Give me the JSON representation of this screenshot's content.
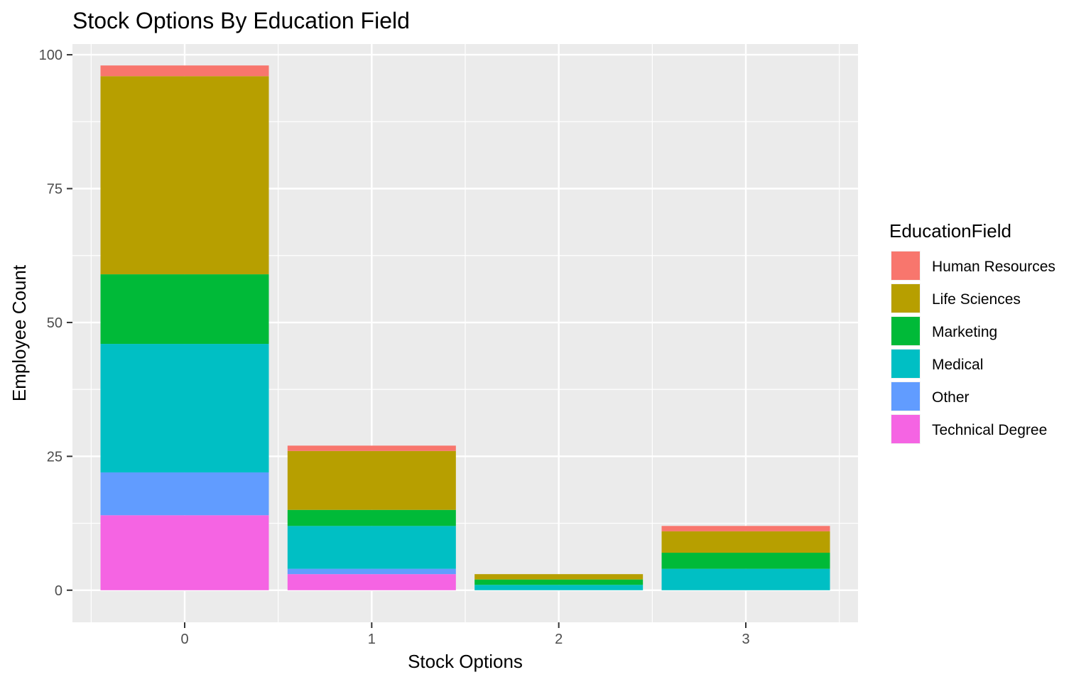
{
  "chart_data": {
    "type": "bar",
    "stacked": true,
    "title": "Stock Options By Education Field",
    "xlabel": "Stock Options",
    "ylabel": "Employee Count",
    "categories": [
      "0",
      "1",
      "2",
      "3"
    ],
    "ylim": [
      -6,
      102
    ],
    "yticks": [
      0,
      25,
      50,
      75,
      100
    ],
    "grid": true,
    "legend_title": "EducationField",
    "legend_position": "right",
    "series": [
      {
        "name": "Human Resources",
        "color": "#F8766D",
        "values": [
          2,
          1,
          0,
          1
        ]
      },
      {
        "name": "Life Sciences",
        "color": "#B79F00",
        "values": [
          37,
          11,
          1,
          4
        ]
      },
      {
        "name": "Marketing",
        "color": "#00BA38",
        "values": [
          13,
          3,
          1,
          3
        ]
      },
      {
        "name": "Medical",
        "color": "#00BFC4",
        "values": [
          24,
          8,
          1,
          4
        ]
      },
      {
        "name": "Other",
        "color": "#619CFF",
        "values": [
          8,
          1,
          0,
          0
        ]
      },
      {
        "name": "Technical Degree",
        "color": "#F564E3",
        "values": [
          14,
          3,
          0,
          0
        ]
      }
    ]
  }
}
